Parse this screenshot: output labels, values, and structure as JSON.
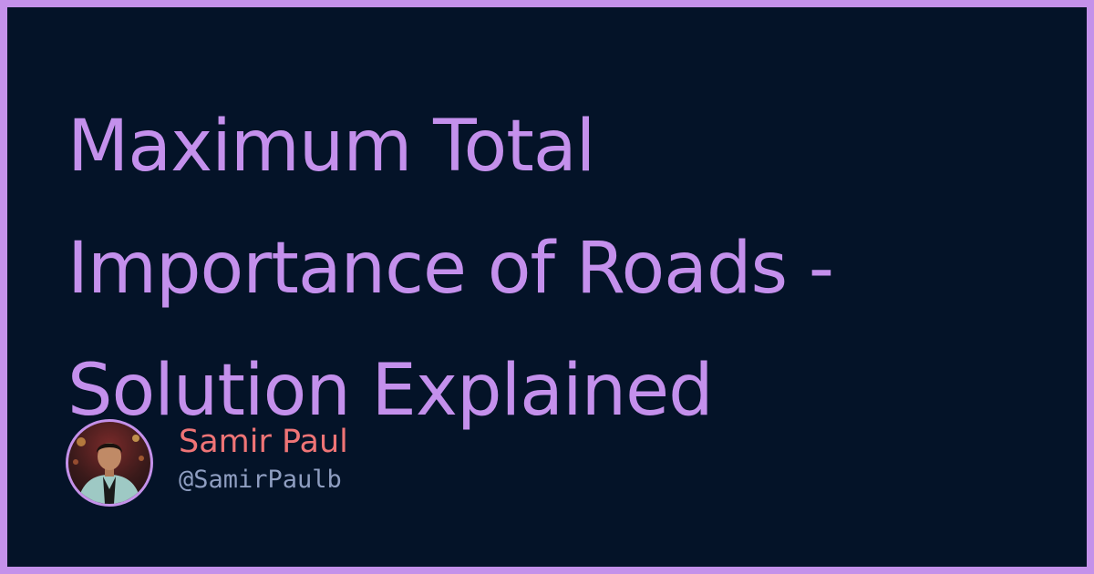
{
  "title_lines": [
    "Maximum Total",
    "Importance of Roads -",
    "Solution Explained"
  ],
  "author": {
    "name": "Samir Paul",
    "handle": "@SamirPaulb",
    "avatar_icon": "person-photo-avatar"
  },
  "colors": {
    "background": "#041328",
    "border": "#c491ea",
    "title": "#c490ec",
    "name": "#ef7476",
    "handle": "#8f9ec1"
  }
}
